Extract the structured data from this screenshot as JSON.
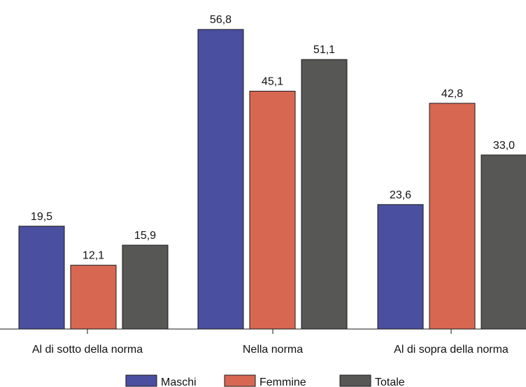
{
  "chart_data": {
    "type": "bar",
    "categories": [
      "Al di sotto della norma",
      "Nella norma",
      "Al di sopra della norma"
    ],
    "series": [
      {
        "name": "Maschi",
        "values": [
          19.5,
          56.8,
          23.6
        ],
        "labels": [
          "19,5",
          "56,8",
          "23,6"
        ],
        "color": "#4b4f9f"
      },
      {
        "name": "Femmine",
        "values": [
          12.1,
          45.1,
          42.8
        ],
        "labels": [
          "12,1",
          "45,1",
          "42,8"
        ],
        "color": "#d86752"
      },
      {
        "name": "Totale",
        "values": [
          15.9,
          51.1,
          33.0
        ],
        "labels": [
          "15,9",
          "51,1",
          "33,0"
        ],
        "color": "#575755"
      }
    ],
    "title": "",
    "xlabel": "",
    "ylabel": "",
    "ylim": [
      0,
      60
    ],
    "grid": false,
    "legend_position": "bottom"
  }
}
